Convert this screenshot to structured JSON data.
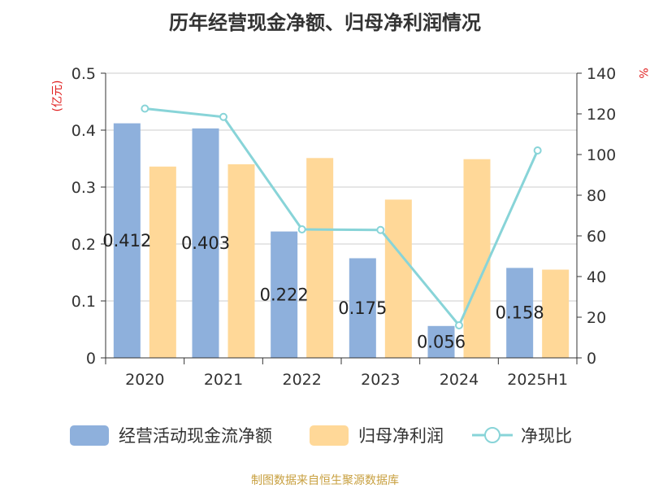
{
  "title": "历年经营现金净额、归母净利润情况",
  "source": "制图数据来自恒生聚源数据库",
  "chart_data": {
    "type": "bar",
    "categories": [
      "2020",
      "2021",
      "2022",
      "2023",
      "2024",
      "2025H1"
    ],
    "series": [
      {
        "name": "经营活动现金流净额",
        "type": "bar",
        "axis": "left",
        "color": "#8eb0dc",
        "values": [
          0.412,
          0.403,
          0.222,
          0.175,
          0.056,
          0.158
        ],
        "labels": [
          "0.412",
          "0.403",
          "0.222",
          "0.175",
          "0.056",
          "0.158"
        ]
      },
      {
        "name": "归母净利润",
        "type": "bar",
        "axis": "left",
        "color": "#ffd898",
        "values": [
          0.336,
          0.34,
          0.351,
          0.278,
          0.349,
          0.155
        ]
      },
      {
        "name": "净现比",
        "type": "line",
        "axis": "right",
        "color": "#88d4d8",
        "values": [
          122.6,
          118.5,
          63.2,
          62.9,
          16.0,
          102.0
        ]
      }
    ],
    "y_left": {
      "label": "(亿元)",
      "range": [
        0,
        0.5
      ],
      "ticks": [
        "0",
        "0.1",
        "0.2",
        "0.3",
        "0.4",
        "0.5"
      ]
    },
    "y_right": {
      "label": "%",
      "range": [
        0,
        140
      ],
      "ticks": [
        "0",
        "20",
        "40",
        "60",
        "80",
        "100",
        "120",
        "140"
      ]
    },
    "grid": true,
    "legend": "bottom"
  }
}
